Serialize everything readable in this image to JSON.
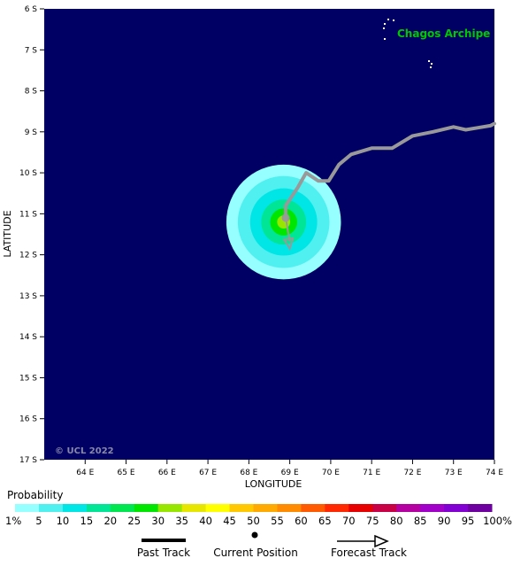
{
  "map": {
    "place_label": "Chagos Archipe",
    "copyright": "© UCL 2022",
    "x_axis_title": "LONGITUDE",
    "y_axis_title": "LATITUDE",
    "lon_ticks": [
      "64 E",
      "65 E",
      "66 E",
      "67 E",
      "68 E",
      "69 E",
      "70 E",
      "71 E",
      "72 E",
      "73 E",
      "74 E"
    ],
    "lat_ticks": [
      "6 S",
      "7 S",
      "8 S",
      "9 S",
      "10 S",
      "11 S",
      "12 S",
      "13 S",
      "14 S",
      "15 S",
      "16 S",
      "17 S"
    ],
    "lon_range": [
      63.0,
      74.0
    ],
    "lat_range": [
      -6.0,
      -17.0
    ],
    "ocean_color": "#000064",
    "place_label_color": "#00c800",
    "track_color": "#999999",
    "past_track": [
      [
        74.0,
        -8.8
      ],
      [
        73.9,
        -8.85
      ],
      [
        73.6,
        -8.9
      ],
      [
        73.3,
        -8.95
      ],
      [
        73.0,
        -8.88
      ],
      [
        72.5,
        -9.0
      ],
      [
        72.0,
        -9.1
      ],
      [
        71.5,
        -9.4
      ],
      [
        71.0,
        -9.4
      ],
      [
        70.5,
        -9.55
      ],
      [
        70.2,
        -9.8
      ],
      [
        69.95,
        -10.2
      ],
      [
        69.7,
        -10.2
      ],
      [
        69.4,
        -10.0
      ],
      [
        69.2,
        -10.35
      ],
      [
        68.9,
        -10.8
      ],
      [
        68.9,
        -11.05
      ]
    ],
    "current_position": [
      68.9,
      -11.1
    ],
    "forecast_track": [
      [
        68.9,
        -11.1
      ],
      [
        69.0,
        -11.85
      ]
    ],
    "probability_rings": [
      {
        "radius_deg": 1.4,
        "pct": 1
      },
      {
        "radius_deg": 1.12,
        "pct": 5
      },
      {
        "radius_deg": 0.82,
        "pct": 10
      },
      {
        "radius_deg": 0.55,
        "pct": 15
      },
      {
        "radius_deg": 0.33,
        "pct": 25
      },
      {
        "radius_deg": 0.16,
        "pct": 30
      }
    ],
    "probability_center": [
      68.85,
      -11.2
    ]
  },
  "legend": {
    "title": "Probability",
    "labels": [
      "1%",
      "5",
      "10",
      "15",
      "20",
      "25",
      "30",
      "35",
      "40",
      "45",
      "50",
      "55",
      "60",
      "65",
      "70",
      "75",
      "80",
      "85",
      "90",
      "95",
      "100%"
    ],
    "colors": [
      "#96ffff",
      "#50f0f0",
      "#00e6e6",
      "#00e696",
      "#00e650",
      "#00e600",
      "#96e600",
      "#e6e600",
      "#ffff00",
      "#ffc800",
      "#ffaa00",
      "#ff8c00",
      "#ff5a00",
      "#ff2800",
      "#e60000",
      "#c80046",
      "#b400a0",
      "#a000c8",
      "#8200d2",
      "#6e00a0",
      "#5a0050"
    ],
    "past_track_label": "Past Track",
    "current_position_label": "Current Position",
    "forecast_track_label": "Forecast Track"
  }
}
